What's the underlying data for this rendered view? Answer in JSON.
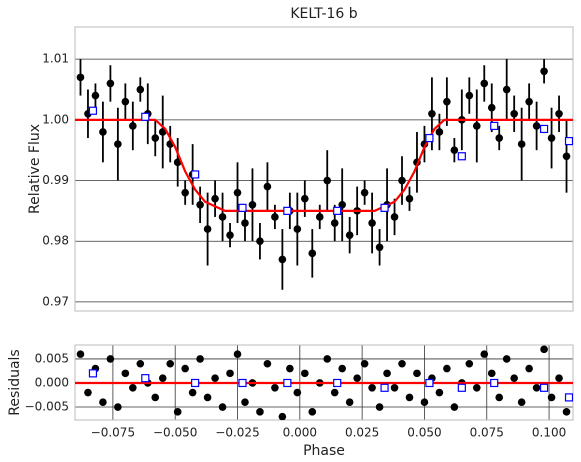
{
  "chart_data": [
    {
      "type": "scatter",
      "title": "KELT-16 b",
      "ylabel": "Relative Flux",
      "xlim": [
        -0.0902,
        0.1096
      ],
      "ylim": [
        0.9685,
        1.0153
      ],
      "yticks": [
        0.97,
        0.98,
        0.99,
        {
          "value": 1,
          "label": "1.00"
        },
        1.01
      ],
      "grid": "y",
      "color": "#000000",
      "x": [
        -0.088,
        -0.085,
        -0.082,
        -0.079,
        -0.076,
        -0.073,
        -0.07,
        -0.067,
        -0.064,
        -0.061,
        -0.058,
        -0.055,
        -0.052,
        -0.049,
        -0.046,
        -0.043,
        -0.04,
        -0.037,
        -0.034,
        -0.031,
        -0.028,
        -0.025,
        -0.022,
        -0.019,
        -0.016,
        -0.013,
        -0.01,
        -0.007,
        -0.004,
        -0.001,
        0.002,
        0.005,
        0.008,
        0.011,
        0.014,
        0.017,
        0.02,
        0.023,
        0.026,
        0.029,
        0.032,
        0.035,
        0.038,
        0.041,
        0.044,
        0.047,
        0.05,
        0.053,
        0.056,
        0.059,
        0.062,
        0.065,
        0.068,
        0.071,
        0.074,
        0.077,
        0.08,
        0.083,
        0.086,
        0.089,
        0.092,
        0.095,
        0.098,
        0.101,
        0.104,
        0.107
      ],
      "values": [
        1.007,
        1.001,
        1.004,
        0.998,
        1.006,
        0.996,
        1.003,
        0.999,
        1.005,
        1.001,
        0.997,
        0.998,
        0.996,
        0.993,
        0.988,
        0.991,
        0.986,
        0.982,
        0.987,
        0.984,
        0.981,
        0.988,
        0.983,
        0.986,
        0.98,
        0.989,
        0.984,
        0.977,
        0.985,
        0.982,
        0.987,
        0.978,
        0.984,
        0.99,
        0.983,
        0.986,
        0.981,
        0.985,
        0.988,
        0.983,
        0.979,
        0.986,
        0.984,
        0.99,
        0.987,
        0.993,
        0.996,
        1.001,
        0.998,
        1.003,
        0.995,
        1.0,
        1.004,
        0.999,
        1.006,
        1.002,
        0.997,
        1.005,
        1.001,
        0.996,
        1.003,
        0.999,
        1.008,
        0.997,
        1.001,
        0.994
      ],
      "errors": [
        0.003,
        0.004,
        0.002,
        0.005,
        0.003,
        0.006,
        0.003,
        0.004,
        0.002,
        0.005,
        0.003,
        0.006,
        0.003,
        0.004,
        0.002,
        0.005,
        0.003,
        0.006,
        0.003,
        0.004,
        0.002,
        0.005,
        0.003,
        0.006,
        0.003,
        0.004,
        0.002,
        0.005,
        0.003,
        0.006,
        0.003,
        0.004,
        0.002,
        0.005,
        0.003,
        0.006,
        0.003,
        0.004,
        0.002,
        0.005,
        0.003,
        0.006,
        0.003,
        0.004,
        0.002,
        0.005,
        0.003,
        0.006,
        0.003,
        0.004,
        0.002,
        0.005,
        0.003,
        0.006,
        0.003,
        0.004,
        0.002,
        0.005,
        0.003,
        0.006,
        0.003,
        0.004,
        0.002,
        0.005,
        0.003,
        0.006
      ],
      "binned": {
        "color": "#0000ff",
        "x": [
          -0.083,
          -0.062,
          -0.042,
          -0.023,
          -0.005,
          0.015,
          0.034,
          0.052,
          0.065,
          0.078,
          0.098,
          0.108
        ],
        "values": [
          1.0015,
          1.0005,
          0.991,
          0.9855,
          0.985,
          0.985,
          0.9855,
          0.997,
          0.994,
          0.999,
          0.9985,
          0.9965
        ]
      },
      "model": {
        "color": "#ff0000",
        "x": [
          -0.0902,
          -0.058,
          -0.054,
          -0.05,
          -0.046,
          -0.042,
          -0.038,
          -0.03,
          0.03,
          0.038,
          0.042,
          0.046,
          0.05,
          0.054,
          0.058,
          0.1096
        ],
        "values": [
          1.0,
          1.0,
          0.9985,
          0.9955,
          0.9915,
          0.9885,
          0.9865,
          0.985,
          0.985,
          0.9865,
          0.9885,
          0.9915,
          0.9955,
          0.9985,
          1.0,
          1.0
        ]
      }
    },
    {
      "type": "scatter",
      "xlabel": "Phase",
      "ylabel": "Residuals",
      "xlim": [
        -0.0902,
        0.1096
      ],
      "ylim": [
        -0.0077,
        0.0079
      ],
      "xticks": [
        {
          "value": -0.075,
          "label": "−0.075"
        },
        {
          "value": -0.05,
          "label": "−0.050"
        },
        {
          "value": -0.025,
          "label": "−0.025"
        },
        {
          "value": 0,
          "label": "0.000"
        },
        0.025,
        {
          "value": 0.05,
          "label": "0.050"
        },
        0.075,
        {
          "value": 0.1,
          "label": "0.100"
        }
      ],
      "yticks": [
        {
          "value": -0.005,
          "label": "−0.005"
        },
        {
          "value": 0,
          "label": "0.000"
        },
        0.005
      ],
      "grid": "xy",
      "color": "#000000",
      "x": [
        -0.088,
        -0.085,
        -0.082,
        -0.079,
        -0.076,
        -0.073,
        -0.07,
        -0.067,
        -0.064,
        -0.061,
        -0.058,
        -0.055,
        -0.052,
        -0.049,
        -0.046,
        -0.043,
        -0.04,
        -0.037,
        -0.034,
        -0.031,
        -0.028,
        -0.025,
        -0.022,
        -0.019,
        -0.016,
        -0.013,
        -0.01,
        -0.007,
        -0.004,
        -0.001,
        0.002,
        0.005,
        0.008,
        0.011,
        0.014,
        0.017,
        0.02,
        0.023,
        0.026,
        0.029,
        0.032,
        0.035,
        0.038,
        0.041,
        0.044,
        0.047,
        0.05,
        0.053,
        0.056,
        0.059,
        0.062,
        0.065,
        0.068,
        0.071,
        0.074,
        0.077,
        0.08,
        0.083,
        0.086,
        0.089,
        0.092,
        0.095,
        0.098,
        0.101,
        0.104,
        0.107
      ],
      "values": [
        0.006,
        -0.002,
        0.003,
        -0.004,
        0.005,
        -0.005,
        0.002,
        -0.001,
        0.004,
        0.0,
        -0.003,
        0.001,
        0.004,
        -0.006,
        0.003,
        -0.002,
        0.005,
        -0.003,
        0.001,
        -0.005,
        0.002,
        0.006,
        -0.004,
        0.0,
        -0.006,
        0.004,
        -0.001,
        -0.007,
        0.003,
        -0.002,
        0.002,
        -0.006,
        0.0,
        0.005,
        -0.002,
        0.003,
        -0.004,
        0.001,
        0.004,
        -0.001,
        -0.005,
        0.002,
        -0.001,
        0.004,
        -0.003,
        0.002,
        -0.004,
        0.001,
        -0.002,
        0.003,
        -0.005,
        0.0,
        0.004,
        -0.001,
        0.006,
        0.002,
        -0.003,
        0.005,
        0.001,
        -0.004,
        0.003,
        -0.001,
        0.007,
        -0.003,
        0.001,
        -0.006
      ],
      "binned": {
        "color": "#0000ff",
        "x": [
          -0.083,
          -0.062,
          -0.042,
          -0.023,
          -0.005,
          0.015,
          0.034,
          0.052,
          0.065,
          0.078,
          0.098,
          0.108
        ],
        "values": [
          0.002,
          0.001,
          0.0,
          0.0,
          0.0,
          0.0,
          -0.001,
          0.0,
          -0.001,
          0.0,
          -0.001,
          -0.003
        ]
      },
      "model": {
        "color": "#ff0000",
        "x": [
          -0.0902,
          0.1096
        ],
        "values": [
          0,
          0
        ]
      }
    }
  ]
}
